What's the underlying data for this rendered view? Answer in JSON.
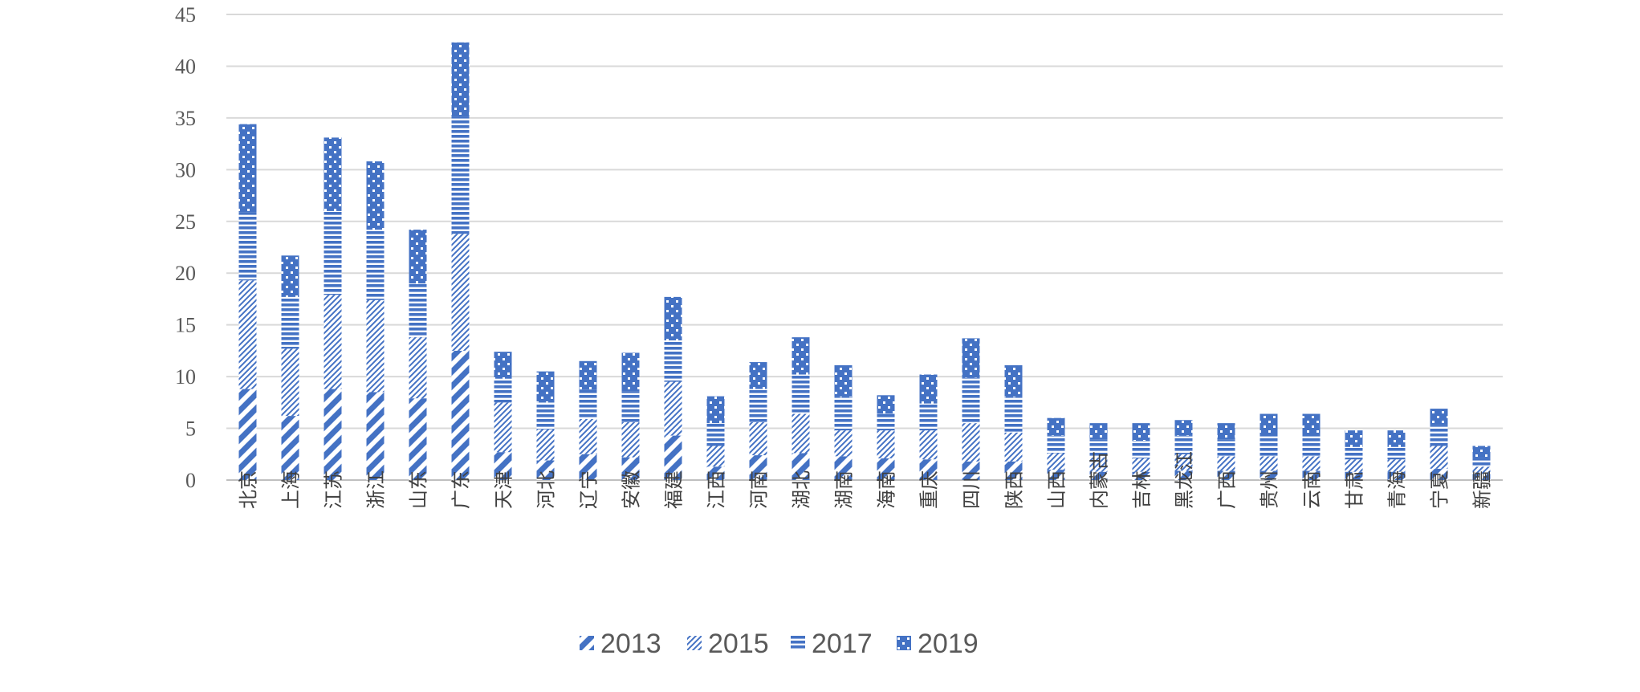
{
  "chart_data": {
    "type": "bar",
    "stacked": true,
    "ylim": [
      0,
      45
    ],
    "yticks": [
      0,
      5,
      10,
      15,
      20,
      25,
      30,
      35,
      40,
      45
    ],
    "grid": true,
    "legend_position": "bottom-center",
    "categories": [
      "北京",
      "上海",
      "江苏",
      "浙江",
      "山东",
      "广东",
      "天津",
      "河北",
      "辽宁",
      "安徽",
      "福建",
      "江西",
      "河南",
      "湖北",
      "湖南",
      "海南",
      "重庆",
      "四川",
      "陕西",
      "山西",
      "内蒙古",
      "吉林",
      "黑龙江",
      "广西",
      "贵州",
      "云南",
      "甘肃",
      "青海",
      "宁夏",
      "新疆"
    ],
    "series": [
      {
        "name": "2013",
        "pattern": "diag-thick",
        "values": [
          8.8,
          6.2,
          8.8,
          8.5,
          7.9,
          12.5,
          2.7,
          1.9,
          2.5,
          2.2,
          4.3,
          1.3,
          2.4,
          2.6,
          2.3,
          2.1,
          2.0,
          1.8,
          1.8,
          1.0,
          0.8,
          0.8,
          0.9,
          0.9,
          0.9,
          0.9,
          0.8,
          0.8,
          1.1,
          0.6
        ]
      },
      {
        "name": "2015",
        "pattern": "diag-thin",
        "values": [
          10.5,
          6.5,
          9.1,
          8.9,
          5.9,
          11.3,
          4.8,
          3.0,
          3.4,
          3.4,
          5.2,
          2.0,
          3.2,
          3.8,
          2.5,
          2.7,
          2.8,
          3.7,
          2.8,
          1.6,
          1.4,
          1.3,
          1.6,
          1.4,
          1.4,
          1.4,
          1.2,
          1.2,
          2.2,
          0.7
        ]
      },
      {
        "name": "2017",
        "pattern": "horiz",
        "values": [
          6.6,
          5.0,
          8.1,
          6.8,
          5.2,
          11.3,
          2.3,
          2.6,
          2.8,
          3.0,
          4.0,
          2.2,
          3.2,
          3.8,
          3.2,
          1.6,
          2.6,
          4.4,
          3.4,
          1.7,
          1.7,
          1.7,
          1.8,
          1.6,
          2.2,
          2.2,
          1.2,
          1.2,
          2.0,
          0.8
        ]
      },
      {
        "name": "2019",
        "pattern": "checker",
        "values": [
          8.5,
          4.0,
          7.1,
          6.6,
          5.2,
          7.2,
          2.6,
          3.0,
          2.8,
          3.7,
          4.2,
          2.6,
          2.6,
          3.6,
          3.1,
          1.8,
          2.8,
          3.8,
          3.1,
          1.7,
          1.6,
          1.7,
          1.5,
          1.6,
          1.9,
          1.9,
          1.6,
          1.6,
          1.6,
          1.2
        ]
      }
    ]
  },
  "colors": {
    "bar": "#4472c4",
    "grid": "#d9d9d9",
    "axis": "#bfbfbf"
  }
}
